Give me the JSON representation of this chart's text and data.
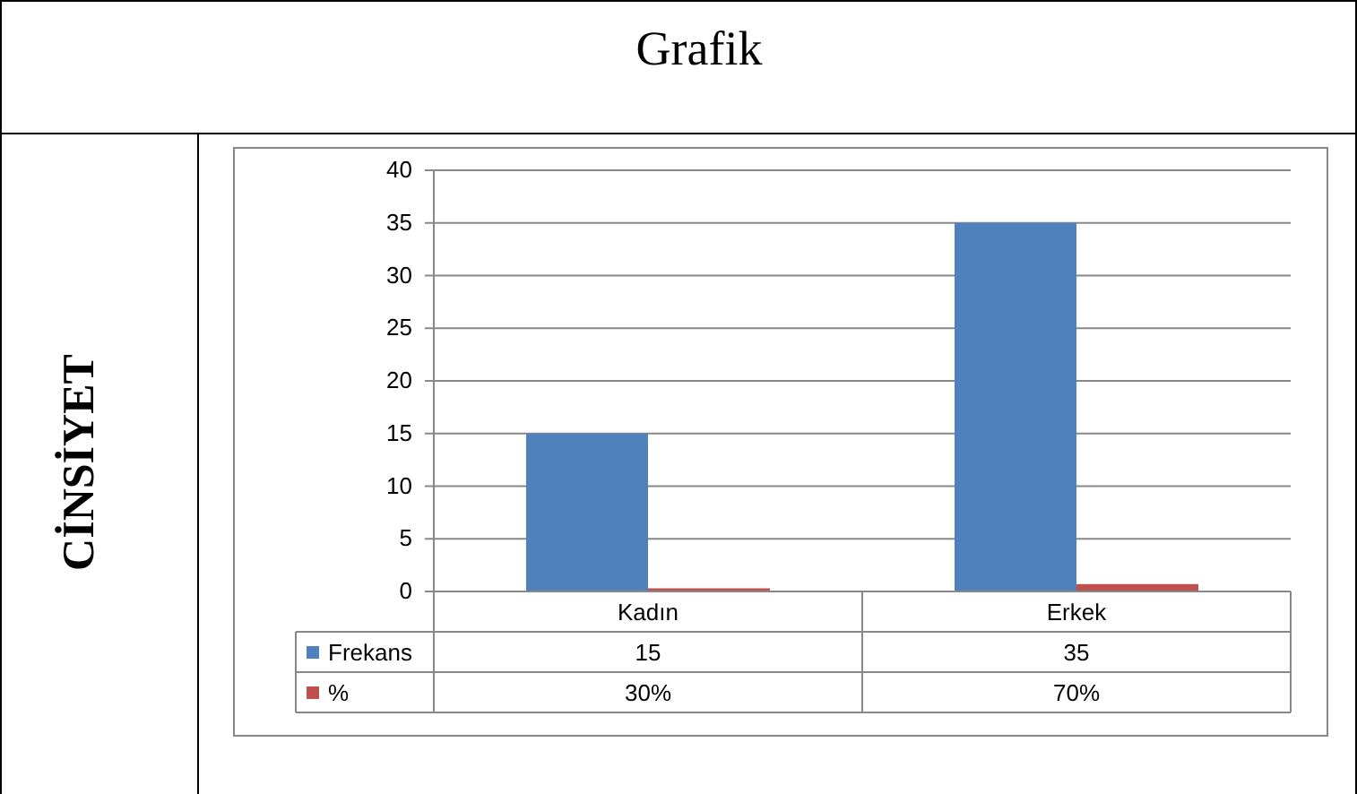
{
  "chart_data": {
    "type": "bar",
    "title": "Grafik",
    "annotations": [
      "CİNSİYET"
    ],
    "categories": [
      "Kadın",
      "Erkek"
    ],
    "series": [
      {
        "name": "Frekans",
        "color": "#4f81bd",
        "values": [
          15,
          35
        ],
        "value_labels": [
          "15",
          "35"
        ]
      },
      {
        "name": "%",
        "color": "#c0504d",
        "values": [
          0.3,
          0.7
        ],
        "value_labels": [
          "30%",
          "70%"
        ]
      }
    ],
    "ylim": [
      0,
      40
    ],
    "yticks": [
      0,
      5,
      10,
      15,
      20,
      25,
      30,
      35,
      40
    ],
    "grid": "y",
    "legend": "bottom"
  }
}
